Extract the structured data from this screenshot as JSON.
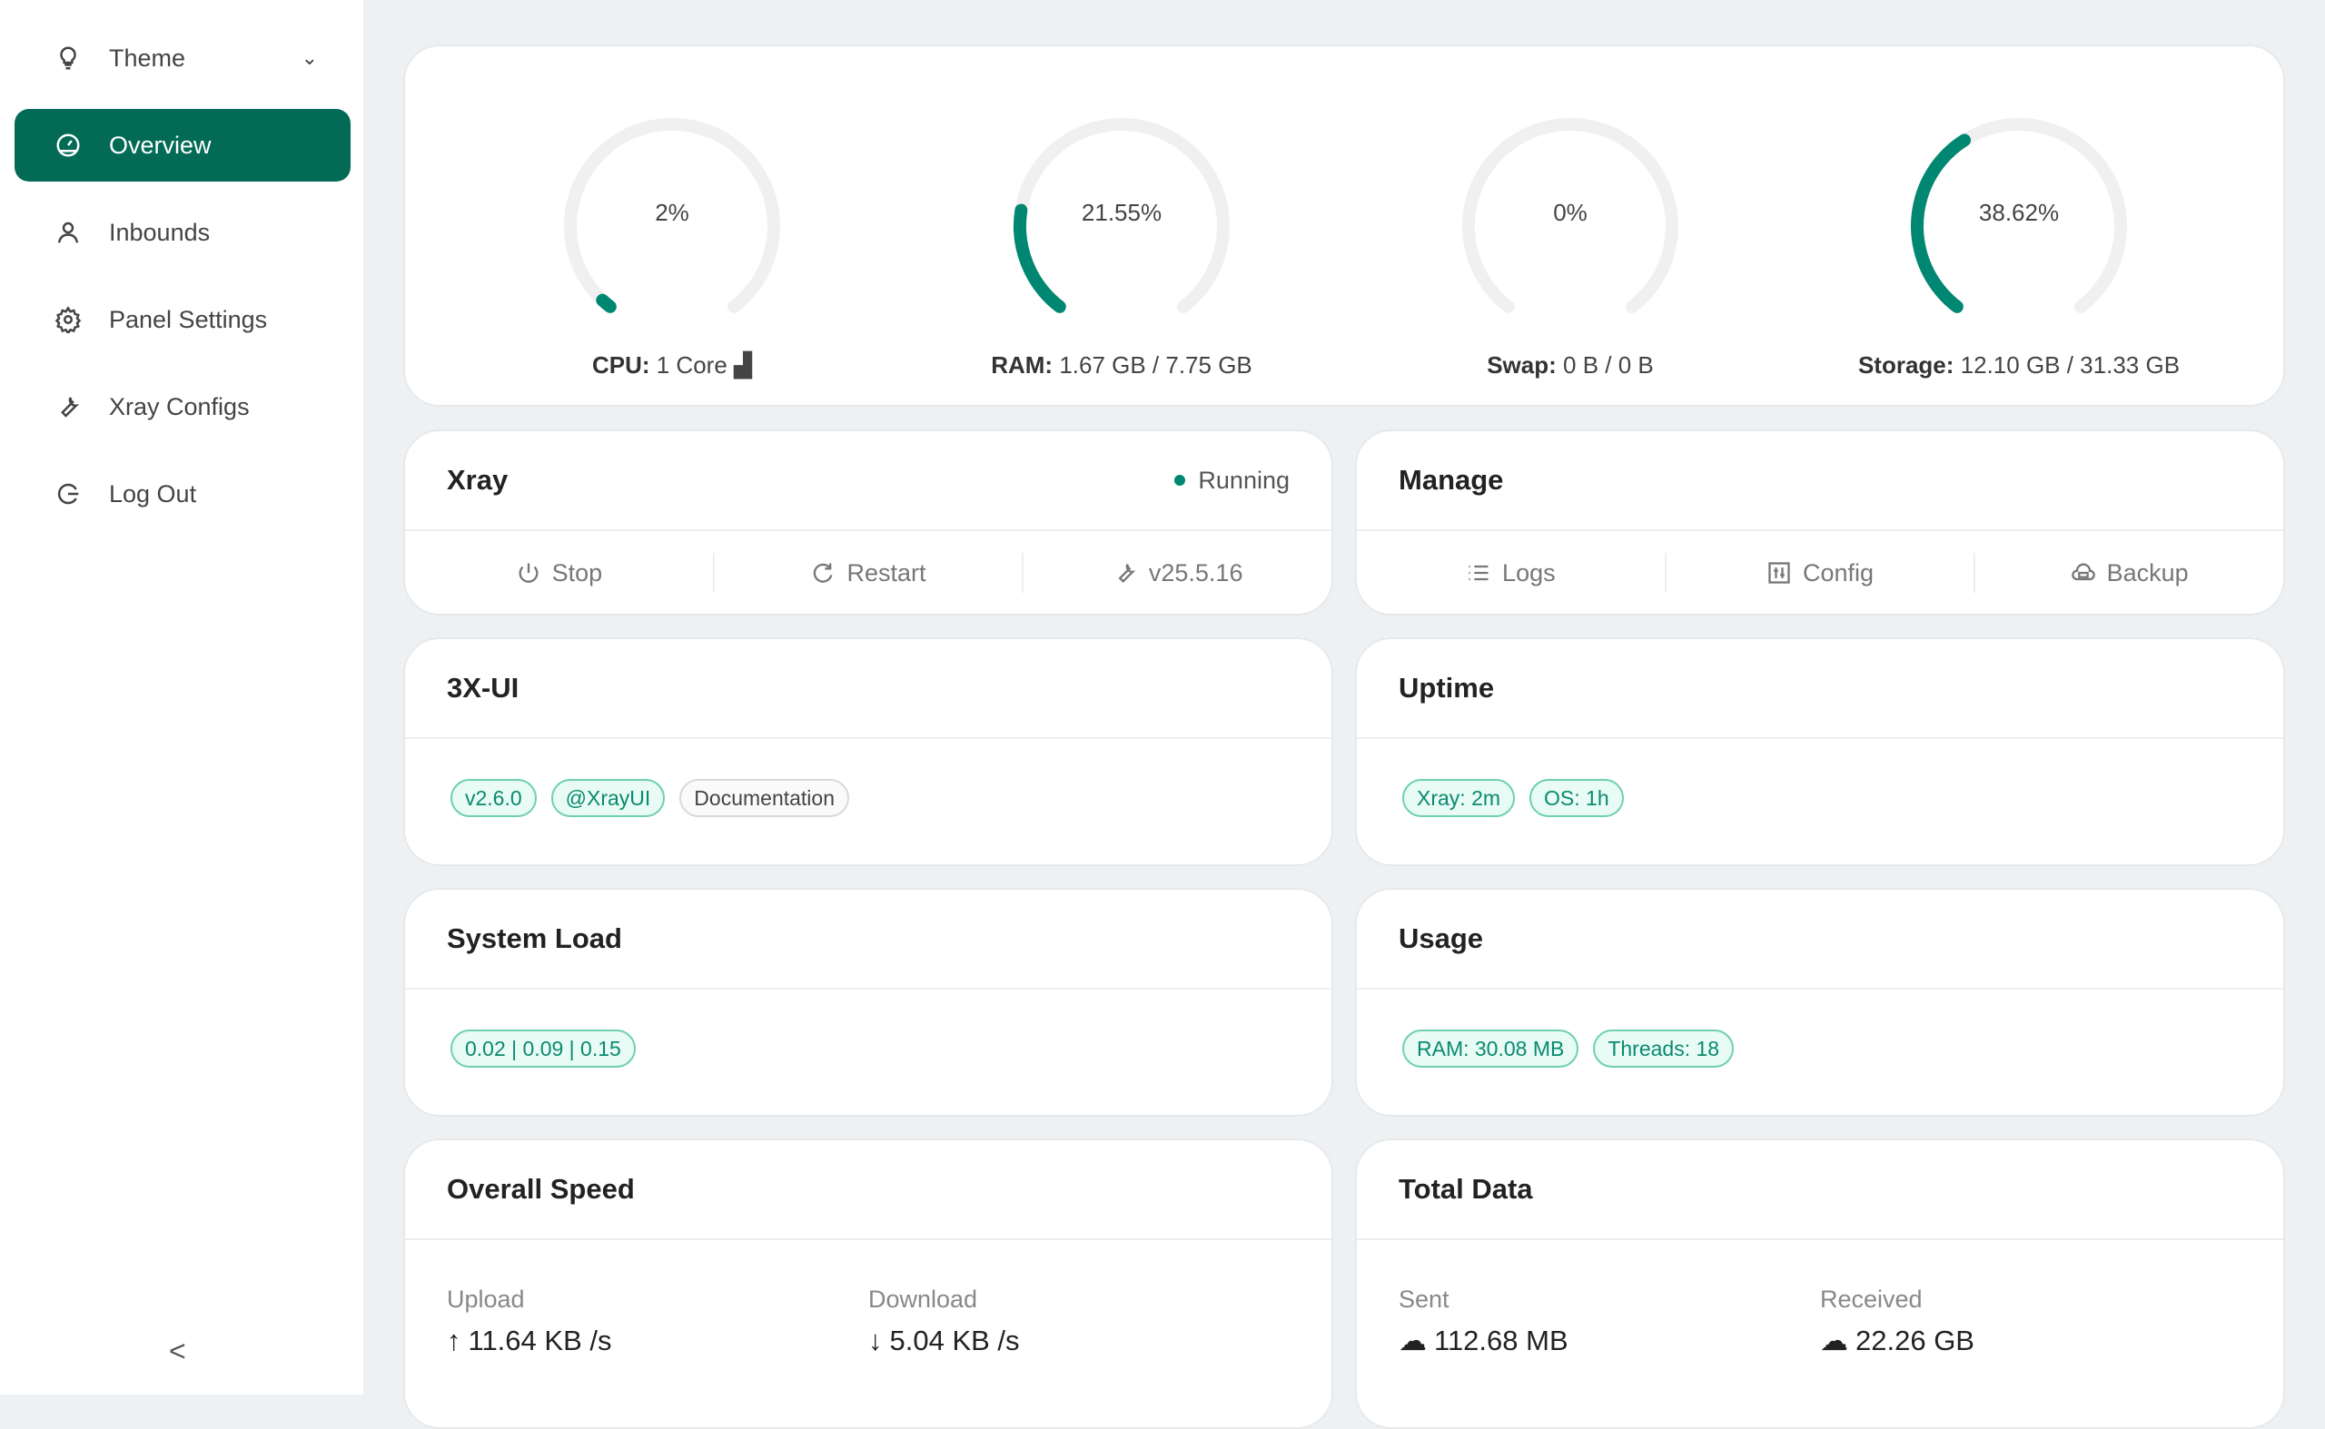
{
  "sidebar": {
    "items": [
      {
        "label": "Theme",
        "icon": "bulb-icon"
      },
      {
        "label": "Overview",
        "icon": "dashboard-icon",
        "active": true
      },
      {
        "label": "Inbounds",
        "icon": "user-icon"
      },
      {
        "label": "Panel Settings",
        "icon": "gear-icon"
      },
      {
        "label": "Xray Configs",
        "icon": "tool-icon"
      },
      {
        "label": "Log Out",
        "icon": "logout-icon"
      }
    ],
    "collapse": "<"
  },
  "gauges": [
    {
      "value": 2,
      "text": "2%",
      "label": "CPU:",
      "detail": "1 Core"
    },
    {
      "value": 21.55,
      "text": "21.55%",
      "label": "RAM:",
      "detail": "1.67 GB / 7.75 GB"
    },
    {
      "value": 0,
      "text": "0%",
      "label": "Swap:",
      "detail": "0 B / 0 B"
    },
    {
      "value": 38.62,
      "text": "38.62%",
      "label": "Storage:",
      "detail": "12.10 GB / 31.33 GB"
    }
  ],
  "colors": {
    "accent": "#008771",
    "sidebar_active": "#026a55",
    "track": "#f0f0f0"
  },
  "xray": {
    "title": "Xray",
    "status": "Running",
    "stop": "Stop",
    "restart": "Restart",
    "version": "v25.5.16"
  },
  "manage": {
    "title": "Manage",
    "logs": "Logs",
    "config": "Config",
    "backup": "Backup"
  },
  "ui": {
    "title": "3X-UI",
    "tags": [
      "v2.6.0",
      "@XrayUI",
      "Documentation"
    ]
  },
  "uptime": {
    "title": "Uptime",
    "tags": [
      "Xray: 2m",
      "OS: 1h"
    ]
  },
  "load": {
    "title": "System Load",
    "tags": [
      "0.02 | 0.09 | 0.15"
    ]
  },
  "usage": {
    "title": "Usage",
    "tags": [
      "RAM: 30.08 MB",
      "Threads: 18"
    ]
  },
  "speed": {
    "title": "Overall Speed",
    "upload_label": "Upload",
    "upload": "11.64 KB /s",
    "download_label": "Download",
    "download": "5.04 KB /s"
  },
  "total": {
    "title": "Total Data",
    "sent_label": "Sent",
    "sent": "112.68 MB",
    "received_label": "Received",
    "received": "22.26 GB"
  }
}
